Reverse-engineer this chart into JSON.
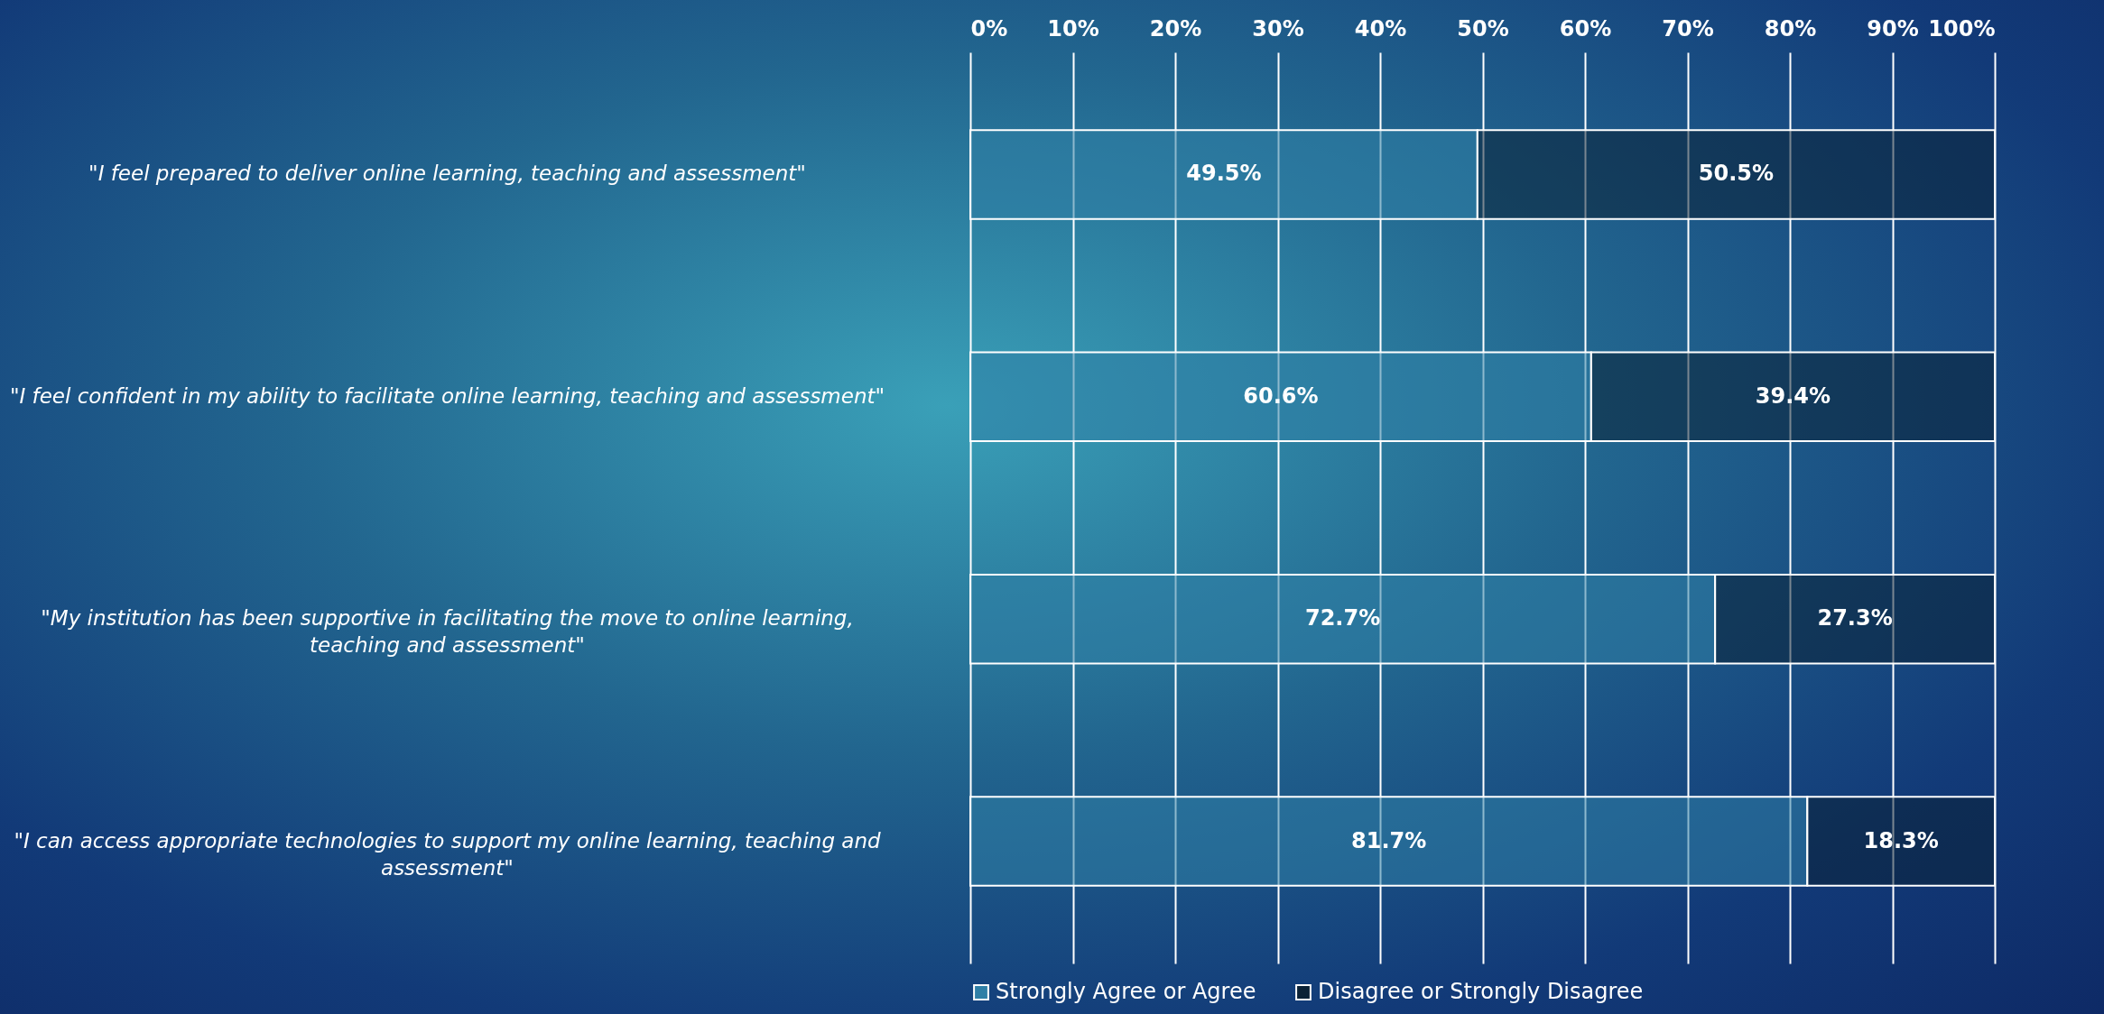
{
  "chart_data": {
    "type": "bar",
    "orientation": "horizontal",
    "stacked": true,
    "categories": [
      "\"I feel prepared to deliver online learning, teaching and assessment\"",
      "\"I feel confident in my ability to facilitate online learning, teaching and assessment\"",
      "\"My institution has been supportive in facilitating the move to online learning, teaching and assessment\"",
      "\"I can access appropriate technologies to support my online learning, teaching and assessment\""
    ],
    "series": [
      {
        "name": "Strongly Agree or Agree",
        "color": "#2f7fa6",
        "values": [
          49.5,
          60.6,
          72.7,
          81.7
        ],
        "value_labels": [
          "49.5%",
          "60.6%",
          "72.7%",
          "81.7%"
        ]
      },
      {
        "name": "Disagree or Strongly Disagree",
        "color": "#0b2236",
        "values": [
          50.5,
          39.4,
          27.3,
          18.3
        ],
        "value_labels": [
          "50.5%",
          "39.4%",
          "27.3%",
          "18.3%"
        ]
      }
    ],
    "xlim": [
      0,
      100
    ],
    "xticks": [
      {
        "value": 0,
        "label": "0%"
      },
      {
        "value": 10,
        "label": "10%"
      },
      {
        "value": 20,
        "label": "20%"
      },
      {
        "value": 30,
        "label": "30%"
      },
      {
        "value": 40,
        "label": "40%"
      },
      {
        "value": 50,
        "label": "50%"
      },
      {
        "value": 60,
        "label": "60%"
      },
      {
        "value": 70,
        "label": "70%"
      },
      {
        "value": 80,
        "label": "80%"
      },
      {
        "value": 90,
        "label": "90%"
      },
      {
        "value": 100,
        "label": "100%"
      }
    ],
    "grid": "x",
    "legend": "bottom"
  }
}
